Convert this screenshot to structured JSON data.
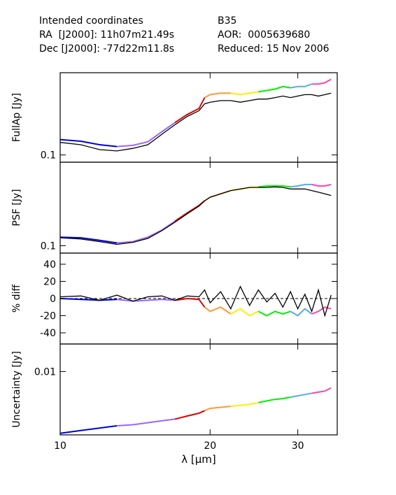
{
  "header": {
    "left": [
      "Intended coordinates",
      "RA  [J2000]: 11h07m21.49s",
      "Dec [J2000]: -77d22m11.8s"
    ],
    "right": [
      "B35",
      "AOR:  0005639680",
      "Reduced: 15 Nov 2006"
    ]
  },
  "colors": {
    "segments": [
      "#0000dd",
      "#9966ff",
      "#dd0000",
      "#ff9933",
      "#ffee00",
      "#00ee00",
      "#55aaee",
      "#ff44aa"
    ],
    "reference_line": "#000000"
  },
  "chart_data": {
    "type": "line",
    "xlabel": "λ [μm]",
    "xscale": "log",
    "xlim": [
      10,
      36
    ],
    "xticks": [
      "10",
      "20",
      "30"
    ],
    "panels": [
      {
        "id": "fullap",
        "ylabel": "FullAp [Jy]",
        "yscale": "log",
        "ylim": [
          0.09,
          0.33
        ],
        "yticks": [
          "0.1"
        ],
        "colored_x": [
          10,
          11,
          12,
          13,
          14,
          15,
          16,
          17,
          18,
          19,
          19.5,
          20,
          21,
          22,
          23,
          24,
          25,
          26,
          27,
          28,
          29,
          30,
          31,
          32,
          33,
          34,
          35
        ],
        "colored_y": [
          0.125,
          0.122,
          0.116,
          0.113,
          0.115,
          0.121,
          0.14,
          0.16,
          0.18,
          0.196,
          0.23,
          0.24,
          0.245,
          0.245,
          0.24,
          0.245,
          0.25,
          0.255,
          0.26,
          0.27,
          0.265,
          0.27,
          0.27,
          0.28,
          0.28,
          0.285,
          0.3
        ],
        "black_x": [
          10,
          11,
          12,
          13,
          14,
          15,
          16,
          17,
          18,
          19,
          19.5,
          20,
          21,
          22,
          23,
          24,
          25,
          26,
          27,
          28,
          29,
          30,
          31,
          32,
          33,
          34,
          35
        ],
        "black_y": [
          0.12,
          0.116,
          0.108,
          0.106,
          0.11,
          0.116,
          0.135,
          0.155,
          0.175,
          0.19,
          0.21,
          0.215,
          0.22,
          0.22,
          0.215,
          0.22,
          0.225,
          0.225,
          0.23,
          0.235,
          0.23,
          0.235,
          0.24,
          0.24,
          0.235,
          0.24,
          0.245
        ]
      },
      {
        "id": "psf",
        "ylabel": "PSF [Jy]",
        "yscale": "log",
        "ylim": [
          0.09,
          0.33
        ],
        "yticks": [
          "0.1"
        ],
        "colored_x": [
          10,
          11,
          12,
          13,
          14,
          15,
          16,
          17,
          18,
          19,
          19.5,
          20,
          21,
          22,
          23,
          24,
          25,
          26,
          27,
          28,
          29,
          30,
          31,
          32,
          33,
          34,
          35
        ],
        "colored_y": [
          0.113,
          0.112,
          0.108,
          0.104,
          0.106,
          0.113,
          0.125,
          0.142,
          0.16,
          0.178,
          0.19,
          0.2,
          0.21,
          0.22,
          0.225,
          0.23,
          0.232,
          0.235,
          0.235,
          0.235,
          0.232,
          0.235,
          0.24,
          0.24,
          0.235,
          0.235,
          0.24
        ],
        "black_x": [
          10,
          11,
          12,
          13,
          14,
          15,
          16,
          17,
          18,
          19,
          19.5,
          20,
          21,
          22,
          23,
          24,
          25,
          26,
          27,
          28,
          29,
          30,
          31,
          32,
          33,
          34,
          35
        ],
        "black_y": [
          0.112,
          0.11,
          0.106,
          0.102,
          0.105,
          0.111,
          0.124,
          0.14,
          0.158,
          0.176,
          0.19,
          0.2,
          0.21,
          0.22,
          0.225,
          0.23,
          0.23,
          0.23,
          0.232,
          0.23,
          0.225,
          0.225,
          0.225,
          0.22,
          0.215,
          0.21,
          0.205
        ]
      },
      {
        "id": "pctdiff",
        "ylabel": "% diff",
        "yscale": "linear",
        "ylim": [
          -53,
          53
        ],
        "yticks": [
          "40",
          "20",
          "0",
          "-20",
          "-40"
        ],
        "ytick_values": [
          40,
          20,
          0,
          -20,
          -40
        ],
        "colored_x": [
          10,
          11,
          12,
          13,
          14,
          15,
          16,
          17,
          18,
          19,
          19.5,
          20,
          21,
          22,
          23,
          24,
          25,
          26,
          27,
          28,
          29,
          30,
          31,
          32,
          33,
          34,
          35
        ],
        "colored_y": [
          0,
          -1,
          -2,
          -1,
          -3,
          -2,
          -1,
          -2,
          0,
          -1,
          -10,
          -15,
          -10,
          -18,
          -12,
          -20,
          -15,
          -20,
          -15,
          -18,
          -15,
          -20,
          -12,
          -18,
          -15,
          -10,
          -12
        ],
        "black_x": [
          10,
          11,
          12,
          13,
          14,
          15,
          16,
          17,
          18,
          19,
          19.5,
          20,
          21,
          22,
          23,
          24,
          25,
          26,
          27,
          28,
          29,
          30,
          31,
          32,
          33,
          34,
          35
        ],
        "black_y": [
          2,
          3,
          -2,
          4,
          -3,
          2,
          3,
          -2,
          3,
          2,
          10,
          -5,
          8,
          -12,
          14,
          -8,
          10,
          -4,
          6,
          -10,
          8,
          -12,
          5,
          -15,
          10,
          -20,
          4
        ]
      },
      {
        "id": "uncertainty",
        "ylabel": "Uncertainty [Jy]",
        "yscale": "log",
        "ylim": [
          0.0008,
          0.03
        ],
        "yticks": [
          "0.01"
        ],
        "colored_x": [
          10,
          11,
          12,
          13,
          14,
          15,
          16,
          17,
          18,
          19,
          19.5,
          20,
          21,
          22,
          23,
          24,
          25,
          26,
          27,
          28,
          29,
          30,
          31,
          32,
          33,
          34,
          35
        ],
        "colored_y": [
          0.00085,
          0.00095,
          0.00105,
          0.00115,
          0.0012,
          0.0013,
          0.0014,
          0.0015,
          0.0017,
          0.0019,
          0.0021,
          0.0023,
          0.0024,
          0.0025,
          0.0026,
          0.0027,
          0.0029,
          0.0031,
          0.0033,
          0.0034,
          0.0036,
          0.0038,
          0.004,
          0.0042,
          0.0044,
          0.0046,
          0.0052
        ]
      }
    ],
    "reference_line_pctdiff": 0
  }
}
